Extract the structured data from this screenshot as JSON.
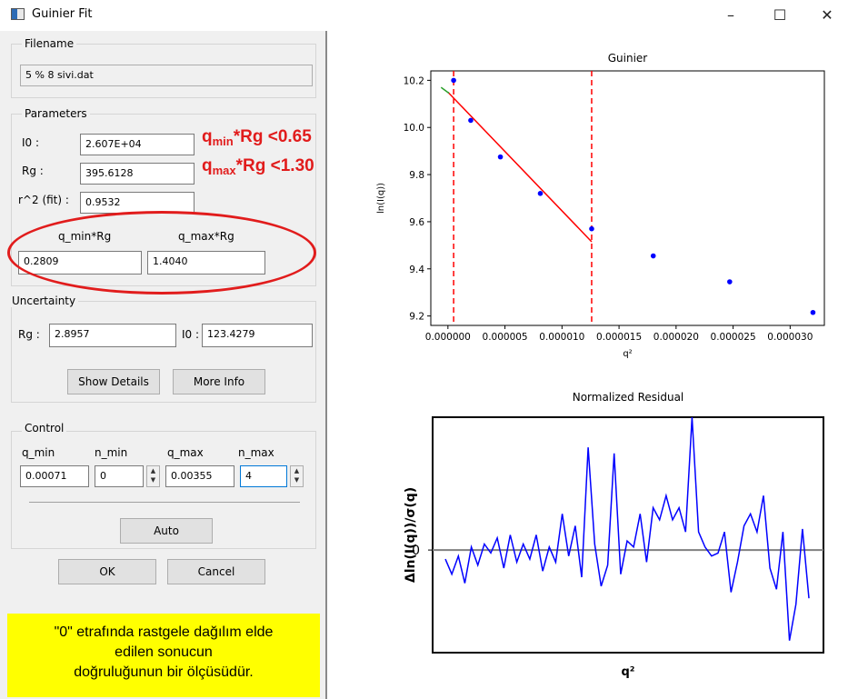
{
  "window": {
    "title": "Guinier Fit",
    "minimize": "–",
    "maximize": "☐",
    "close": "✕",
    "icon": "app-window-icon"
  },
  "filename": {
    "group_label": "Filename",
    "value": "5 % 8 sivi.dat"
  },
  "parameters": {
    "group_label": "Parameters",
    "i0_label": "I0 :",
    "i0_value": "2.607E+04",
    "rg_label": "Rg :",
    "rg_value": "395.6128",
    "r2_label": "r^2 (fit) :",
    "r2_value": "0.9532",
    "qmin_rg_label": "q_min*Rg",
    "qmin_rg_value": "0.2809",
    "qmax_rg_label": "q_max*Rg",
    "qmax_rg_value": "1.4040"
  },
  "uncertainty": {
    "group_label": "Uncertainty",
    "rg_label": "Rg :",
    "rg_value": "2.8957",
    "i0_label": "I0 :",
    "i0_value": "123.4279",
    "show_details": "Show Details",
    "more_info": "More Info"
  },
  "control": {
    "group_label": "Control",
    "qmin_label": "q_min",
    "nmin_label": "n_min",
    "qmax_label": "q_max",
    "nmax_label": "n_max",
    "qmin_value": "0.00071",
    "nmin_value": "0",
    "qmax_value": "0.00355",
    "nmax_value": "4",
    "auto": "Auto",
    "ok": "OK",
    "cancel": "Cancel"
  },
  "annotation": {
    "line1": {
      "q": "q",
      "sub": "min",
      "rest": "*Rg <0.65"
    },
    "line2": {
      "q": "q",
      "sub": "max",
      "rest": "*Rg <1.30"
    },
    "note_line1": "\"0\" etrafında rastgele dağılım elde",
    "note_line2": "edilen sonucun",
    "note_line3": "doğruluğunun bir ölçüsüdür.",
    "colors": {
      "annotation": "#e11c1c",
      "note_bg": "#ffff00"
    }
  },
  "chart_data": [
    {
      "type": "scatter",
      "title": "Guinier",
      "xlabel": "q²",
      "ylabel": "ln(I(q))",
      "xlim": [
        -1.5e-06,
        3.3e-05
      ],
      "ylim": [
        9.16,
        10.24
      ],
      "xticks": [
        "0.000000",
        "0.000005",
        "0.000010",
        "0.000015",
        "0.000020",
        "0.000025",
        "0.000030"
      ],
      "xtick_values": [
        0,
        5e-06,
        1e-05,
        1.5e-05,
        2e-05,
        2.5e-05,
        3e-05
      ],
      "yticks": [
        "9.2",
        "9.4",
        "9.6",
        "9.8",
        "10.0",
        "10.2"
      ],
      "ytick_values": [
        9.2,
        9.4,
        9.6,
        9.8,
        10.0,
        10.2
      ],
      "points": {
        "x": [
          5e-07,
          2e-06,
          4.6e-06,
          8.1e-06,
          1.26e-05,
          1.8e-05,
          2.47e-05,
          3.2e-05
        ],
        "y": [
          10.2,
          10.03,
          9.875,
          9.72,
          9.57,
          9.455,
          9.345,
          9.215
        ],
        "color": "#0000ff"
      },
      "fit_line": {
        "x": [
          0,
          1.26e-05
        ],
        "y": [
          10.15,
          9.515
        ],
        "color": "#ff0000"
      },
      "fit_green": {
        "x": [
          -6e-07,
          1e-07
        ],
        "y": [
          10.17,
          10.145
        ],
        "color": "#2ca02c"
      },
      "vlines": {
        "x": [
          5e-07,
          1.26e-05
        ],
        "color": "#ff0000"
      }
    },
    {
      "type": "line",
      "title": "Normalized Residual",
      "xlabel": "q²",
      "ylabel": "Δln(I(q))/σ(q)",
      "ytick": "0",
      "ylim": [
        -1.7,
        2.2
      ],
      "zero_line_color": "#808080",
      "series": [
        {
          "color": "#0000ff",
          "values": [
            -0.15,
            -0.4,
            -0.1,
            -0.55,
            0.05,
            -0.25,
            0.1,
            -0.05,
            0.2,
            -0.3,
            0.25,
            -0.2,
            0.1,
            -0.15,
            0.25,
            -0.35,
            0.05,
            -0.2,
            0.6,
            -0.1,
            0.4,
            -0.45,
            1.7,
            0.1,
            -0.6,
            -0.25,
            1.6,
            -0.4,
            0.15,
            0.05,
            0.6,
            -0.2,
            0.7,
            0.5,
            0.9,
            0.5,
            0.7,
            0.3,
            2.2,
            0.3,
            0.05,
            -0.1,
            -0.05,
            0.3,
            -0.7,
            -0.2,
            0.4,
            0.6,
            0.3,
            0.9,
            -0.3,
            -0.65,
            0.3,
            -1.5,
            -0.9,
            0.35,
            -0.8
          ]
        }
      ]
    }
  ]
}
